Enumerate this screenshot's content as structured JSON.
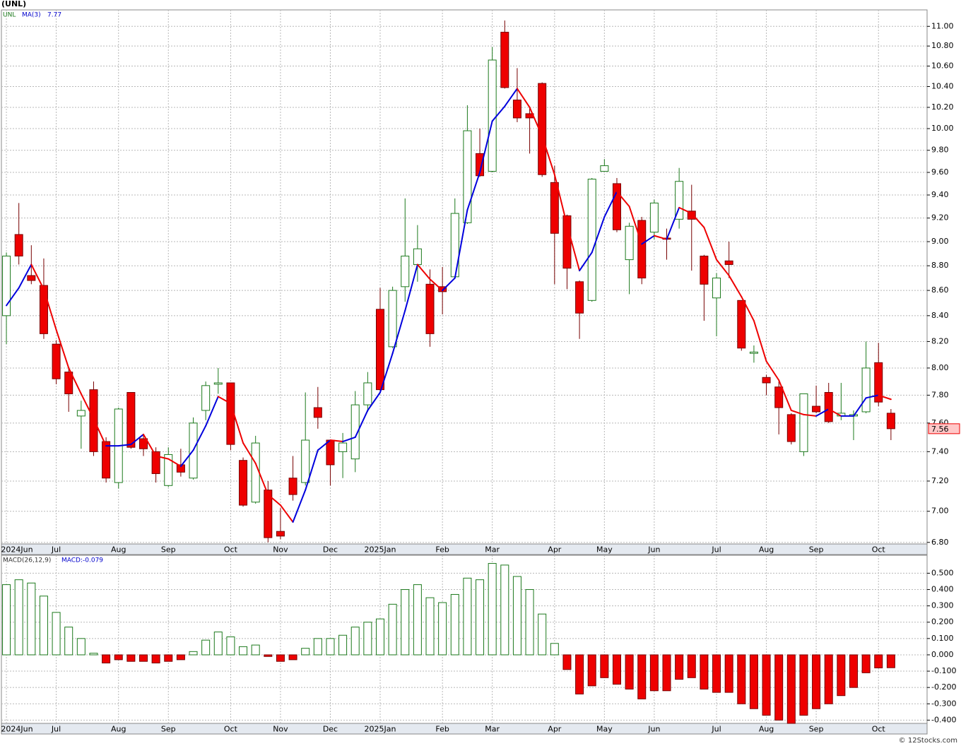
{
  "chart_data": [
    {
      "type": "candlestick",
      "title": "(UNL)",
      "ticker": "UNL",
      "log_scale": true,
      "grid": true,
      "up_color": "#1d7a1d",
      "down_color": "#ee0000",
      "open": [
        8.4,
        9.06,
        8.72,
        8.64,
        8.18,
        7.97,
        7.65,
        7.84,
        7.47,
        7.19,
        7.82,
        7.49,
        7.4,
        7.17,
        7.31,
        7.22,
        7.69,
        7.88,
        7.89,
        7.34,
        7.06,
        7.14,
        6.87,
        7.22,
        7.19,
        7.71,
        7.48,
        7.4,
        7.35,
        7.73,
        8.45,
        8.16,
        8.63,
        8.81,
        8.65,
        8.63,
        8.71,
        9.16,
        9.77,
        9.61,
        10.94,
        10.27,
        10.14,
        10.43,
        9.51,
        9.22,
        8.67,
        8.52,
        9.61,
        9.5,
        8.85,
        9.18,
        9.08,
        9.03,
        9.19,
        9.26,
        8.88,
        8.54,
        8.84,
        8.52,
        8.11,
        7.93,
        7.86,
        7.66,
        7.4,
        7.72,
        7.82,
        7.65,
        7.65,
        7.68,
        8.04,
        7.67
      ],
      "high": [
        8.91,
        9.33,
        8.97,
        8.86,
        8.21,
        8.0,
        7.76,
        7.9,
        7.5,
        7.71,
        7.82,
        7.52,
        7.43,
        7.43,
        7.42,
        7.64,
        7.9,
        8.0,
        7.89,
        7.36,
        7.51,
        7.2,
        7.02,
        7.37,
        7.82,
        7.86,
        7.48,
        7.53,
        7.83,
        7.97,
        8.62,
        8.63,
        9.37,
        9.14,
        8.77,
        8.79,
        9.37,
        10.22,
        10.0,
        10.79,
        11.06,
        10.58,
        10.19,
        10.44,
        9.66,
        9.23,
        8.68,
        9.55,
        9.72,
        9.55,
        9.16,
        9.21,
        9.36,
        9.11,
        9.64,
        9.49,
        8.89,
        8.74,
        9.0,
        8.52,
        8.17,
        7.95,
        7.9,
        7.67,
        7.81,
        7.87,
        7.89,
        7.89,
        7.69,
        8.2,
        8.19,
        7.7
      ],
      "low": [
        8.18,
        8.81,
        8.65,
        8.22,
        7.88,
        7.68,
        7.42,
        7.37,
        7.19,
        7.15,
        7.42,
        7.37,
        7.19,
        7.16,
        7.23,
        7.21,
        7.62,
        7.81,
        7.41,
        7.03,
        7.05,
        6.8,
        6.82,
        7.07,
        7.17,
        7.56,
        7.17,
        7.22,
        7.26,
        7.68,
        7.83,
        8.15,
        8.51,
        8.67,
        8.16,
        8.41,
        8.7,
        9.15,
        9.56,
        9.6,
        10.38,
        10.06,
        9.77,
        9.56,
        8.65,
        8.61,
        8.22,
        8.51,
        9.61,
        9.08,
        8.57,
        8.65,
        9.02,
        8.85,
        9.11,
        8.76,
        8.36,
        8.24,
        8.7,
        8.13,
        8.04,
        7.8,
        7.52,
        7.45,
        7.37,
        7.67,
        7.6,
        7.62,
        7.48,
        7.67,
        7.72,
        7.48
      ],
      "close": [
        8.88,
        8.88,
        8.68,
        8.26,
        7.92,
        7.81,
        7.69,
        7.4,
        7.22,
        7.7,
        7.43,
        7.42,
        7.25,
        7.38,
        7.26,
        7.6,
        7.87,
        7.89,
        7.45,
        7.04,
        7.46,
        6.83,
        6.84,
        7.11,
        7.48,
        7.64,
        7.31,
        7.46,
        7.73,
        7.89,
        7.84,
        8.6,
        8.88,
        8.94,
        8.26,
        8.59,
        9.24,
        9.98,
        9.57,
        10.66,
        10.39,
        10.1,
        10.1,
        9.58,
        9.07,
        8.78,
        8.42,
        9.54,
        9.66,
        9.1,
        9.13,
        8.7,
        9.33,
        9.02,
        9.52,
        9.19,
        8.65,
        8.7,
        8.81,
        8.15,
        8.12,
        7.89,
        7.71,
        7.47,
        7.81,
        7.68,
        7.61,
        7.67,
        7.66,
        8.0,
        7.75,
        7.56
      ],
      "series": [
        {
          "name": "MA(3)",
          "color_up": "#0000dd",
          "color_down": "#ee0000",
          "values": [
            8.48,
            8.62,
            8.81,
            8.61,
            8.29,
            8.0,
            7.81,
            7.63,
            7.44,
            7.44,
            7.45,
            7.52,
            7.37,
            7.35,
            7.3,
            7.41,
            7.58,
            7.79,
            7.74,
            7.46,
            7.32,
            7.11,
            7.04,
            6.93,
            7.14,
            7.41,
            7.48,
            7.47,
            7.5,
            7.69,
            7.82,
            8.11,
            8.44,
            8.81,
            8.69,
            8.6,
            8.7,
            9.27,
            9.6,
            10.07,
            10.21,
            10.38,
            10.2,
            9.93,
            9.58,
            9.14,
            8.76,
            8.91,
            9.21,
            9.43,
            9.3,
            8.98,
            9.05,
            9.02,
            9.29,
            9.24,
            9.12,
            8.85,
            8.72,
            8.55,
            8.36,
            8.05,
            7.91,
            7.69,
            7.66,
            7.65,
            7.7,
            7.65,
            7.65,
            7.78,
            7.8,
            7.77
          ]
        }
      ],
      "xlim": [
        -0.4,
        73.9
      ],
      "xticks": [
        {
          "value": 0,
          "label": "2024Jun"
        },
        {
          "value": 4,
          "label": "Jul"
        },
        {
          "value": 9,
          "label": "Aug"
        },
        {
          "value": 13,
          "label": "Sep"
        },
        {
          "value": 18,
          "label": "Oct"
        },
        {
          "value": 22,
          "label": "Nov"
        },
        {
          "value": 26,
          "label": "Dec"
        },
        {
          "value": 30,
          "label": "2025Jan"
        },
        {
          "value": 35,
          "label": "Feb"
        },
        {
          "value": 39,
          "label": "Mar"
        },
        {
          "value": 44,
          "label": "Apr"
        },
        {
          "value": 48,
          "label": "May"
        },
        {
          "value": 52,
          "label": "Jun"
        },
        {
          "value": 57,
          "label": "Jul"
        },
        {
          "value": 61,
          "label": "Aug"
        },
        {
          "value": 65,
          "label": "Sep"
        },
        {
          "value": 70,
          "label": "Oct"
        }
      ],
      "ylim": [
        6.79,
        11.17
      ],
      "yticks": [
        {
          "value": 11,
          "label": "11.00"
        },
        {
          "value": 10.8,
          "label": "10.80"
        },
        {
          "value": 10.6,
          "label": "10.60"
        },
        {
          "value": 10.4,
          "label": "10.40"
        },
        {
          "value": 10.2,
          "label": "10.20"
        },
        {
          "value": 10,
          "label": "10.00"
        },
        {
          "value": 9.8,
          "label": "9.80"
        },
        {
          "value": 9.6,
          "label": "9.60"
        },
        {
          "value": 9.4,
          "label": "9.40"
        },
        {
          "value": 9.2,
          "label": "9.20"
        },
        {
          "value": 9,
          "label": "9.00"
        },
        {
          "value": 8.8,
          "label": "8.80"
        },
        {
          "value": 8.6,
          "label": "8.60"
        },
        {
          "value": 8.4,
          "label": "8.40"
        },
        {
          "value": 8.2,
          "label": "8.20"
        },
        {
          "value": 8,
          "label": "8.00"
        },
        {
          "value": 7.8,
          "label": "7.80"
        },
        {
          "value": 7.6,
          "label": "7.60"
        },
        {
          "value": 7.4,
          "label": "7.40"
        },
        {
          "value": 7.2,
          "label": "7.20"
        },
        {
          "value": 7,
          "label": "7.00"
        },
        {
          "value": 6.8,
          "label": "6.80"
        }
      ]
    },
    {
      "type": "bar",
      "title": "MACD(26,12,9)",
      "readout": "MACD:-0.079",
      "grid": true,
      "up_color": "#1d7a1d",
      "down_color": "#ee0000",
      "values": [
        0.43,
        0.46,
        0.44,
        0.36,
        0.26,
        0.17,
        0.1,
        0.01,
        -0.05,
        -0.03,
        -0.04,
        -0.04,
        -0.05,
        -0.04,
        -0.03,
        0.02,
        0.09,
        0.14,
        0.11,
        0.05,
        0.06,
        -0.01,
        -0.04,
        -0.03,
        0.04,
        0.1,
        0.1,
        0.12,
        0.17,
        0.2,
        0.22,
        0.31,
        0.4,
        0.43,
        0.35,
        0.32,
        0.37,
        0.47,
        0.46,
        0.56,
        0.55,
        0.48,
        0.4,
        0.25,
        0.07,
        -0.09,
        -0.24,
        -0.19,
        -0.14,
        -0.18,
        -0.21,
        -0.27,
        -0.22,
        -0.22,
        -0.15,
        -0.14,
        -0.21,
        -0.23,
        -0.23,
        -0.3,
        -0.33,
        -0.37,
        -0.4,
        -0.42,
        -0.37,
        -0.33,
        -0.3,
        -0.25,
        -0.2,
        -0.11,
        -0.08,
        -0.079
      ],
      "xlim": [
        -0.4,
        73.9
      ],
      "xticks": [
        {
          "value": 0,
          "label": "2024Jun"
        },
        {
          "value": 4,
          "label": "Jul"
        },
        {
          "value": 9,
          "label": "Aug"
        },
        {
          "value": 13,
          "label": "Sep"
        },
        {
          "value": 18,
          "label": "Oct"
        },
        {
          "value": 22,
          "label": "Nov"
        },
        {
          "value": 26,
          "label": "Dec"
        },
        {
          "value": 30,
          "label": "2025Jan"
        },
        {
          "value": 35,
          "label": "Feb"
        },
        {
          "value": 39,
          "label": "Mar"
        },
        {
          "value": 44,
          "label": "Apr"
        },
        {
          "value": 48,
          "label": "May"
        },
        {
          "value": 52,
          "label": "Jun"
        },
        {
          "value": 57,
          "label": "Jul"
        },
        {
          "value": 61,
          "label": "Aug"
        },
        {
          "value": 65,
          "label": "Sep"
        },
        {
          "value": 70,
          "label": "Oct"
        }
      ],
      "ylim": [
        -0.42,
        0.61
      ],
      "yticks": [
        {
          "value": 0.5,
          "label": "0.500"
        },
        {
          "value": 0.4,
          "label": "0.400"
        },
        {
          "value": 0.3,
          "label": "0.300"
        },
        {
          "value": 0.2,
          "label": "0.200"
        },
        {
          "value": 0.1,
          "label": "0.100"
        },
        {
          "value": 0,
          "label": "0.000"
        },
        {
          "value": -0.1,
          "label": "-0.100"
        },
        {
          "value": -0.2,
          "label": "-0.200"
        },
        {
          "value": -0.3,
          "label": "-0.300"
        },
        {
          "value": -0.4,
          "label": "-0.400"
        }
      ]
    }
  ],
  "footer": "© 12Stocks.com"
}
